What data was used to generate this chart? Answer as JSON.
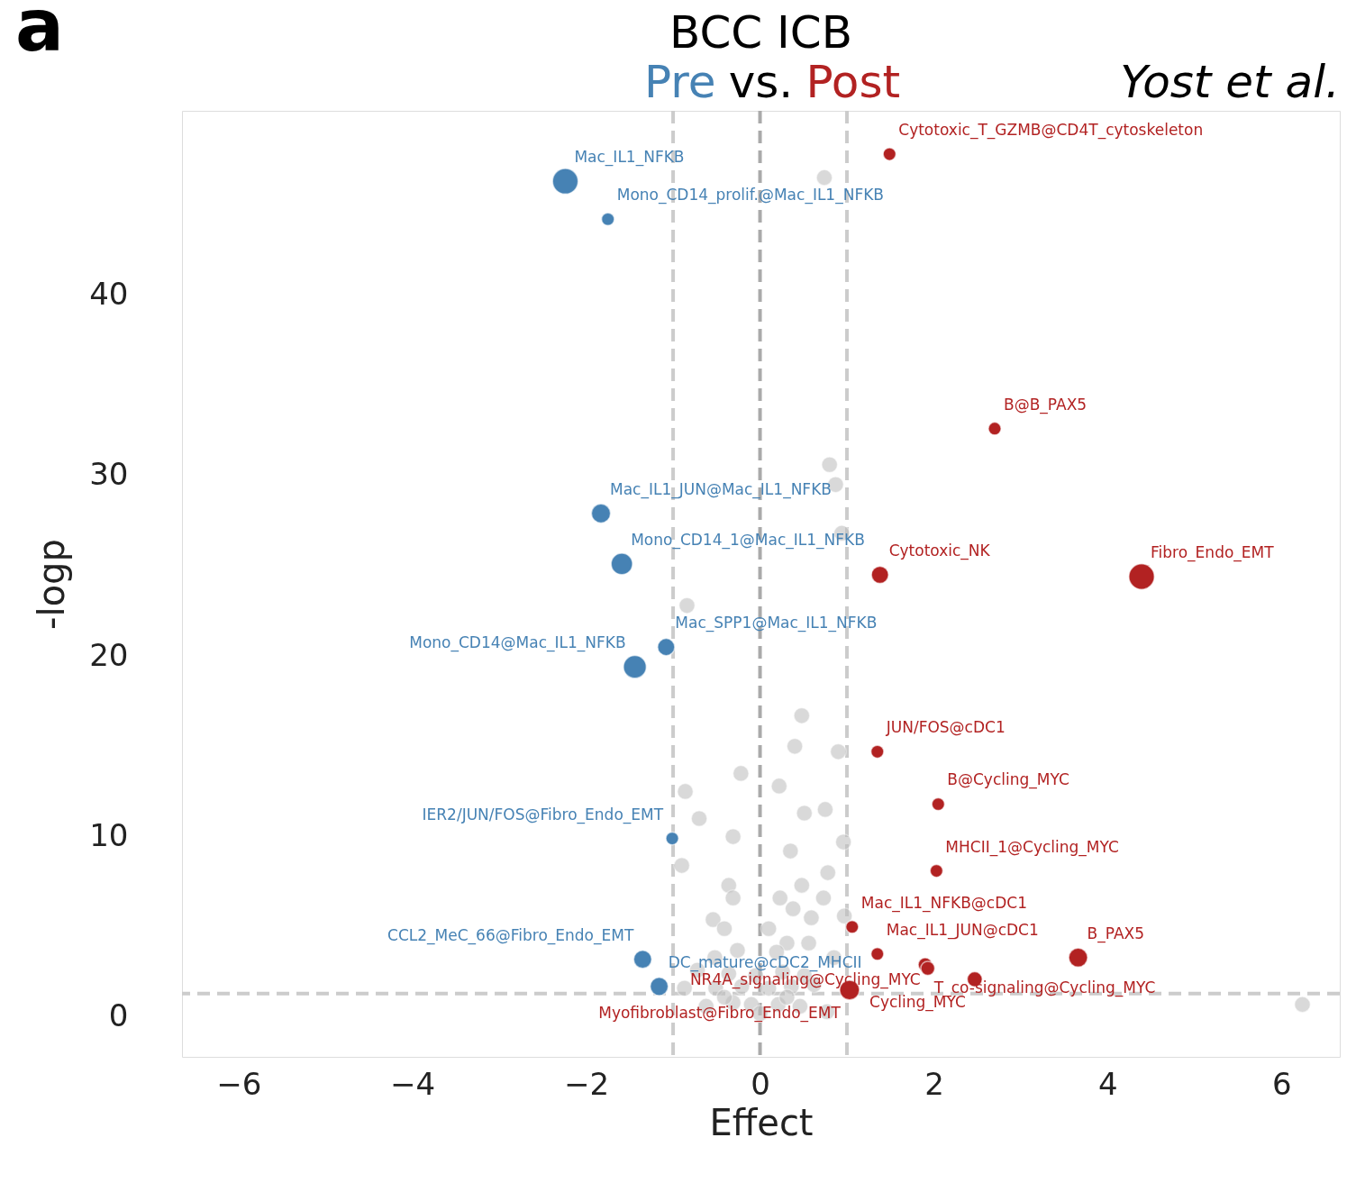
{
  "chart_data": {
    "type": "bubble",
    "title": "BCC ICB",
    "subtitle": "Pre vs. Post",
    "xlabel": "Effect",
    "ylabel": "-logp",
    "annotations": [
      "a",
      "Yost et al.",
      {
        "text": "Mac_IL1_NFKB",
        "x": -2.24,
        "y": 46.3
      },
      {
        "text": "Mono_CD14_prolif.@Mac_IL1_NFKB",
        "x": -1.75,
        "y": 44.2
      },
      {
        "text": "Mac_IL1_JUN@Mac_IL1_NFKB",
        "x": -1.83,
        "y": 27.9
      },
      {
        "text": "Mono_CD14_1@Mac_IL1_NFKB",
        "x": -1.59,
        "y": 25.1
      },
      {
        "text": "Mac_SPP1@Mac_IL1_NFKB",
        "x": -1.08,
        "y": 20.5
      },
      {
        "text": "Mono_CD14@Mac_IL1_NFKB",
        "x": -1.44,
        "y": 19.4
      },
      {
        "text": "IER2/JUN/FOS@Fibro_Endo_EMT",
        "x": -1.01,
        "y": 9.9
      },
      {
        "text": "CCL2_MeC_66@Fibro_Endo_EMT",
        "x": -1.35,
        "y": 3.2
      },
      {
        "text": "DC_mature@cDC2_MHCII",
        "x": -1.16,
        "y": 1.7
      },
      {
        "text": "Cytotoxic_T_GZMB@CD4T_cytoskeleton",
        "x": 1.49,
        "y": 47.8
      },
      {
        "text": "B@B_PAX5",
        "x": 2.7,
        "y": 32.6
      },
      {
        "text": "Cytotoxic_NK",
        "x": 1.38,
        "y": 24.5
      },
      {
        "text": "Fibro_Endo_EMT",
        "x": 4.39,
        "y": 24.4
      },
      {
        "text": "JUN/FOS@cDC1",
        "x": 1.35,
        "y": 14.7
      },
      {
        "text": "B@Cycling_MYC",
        "x": 2.05,
        "y": 11.8
      },
      {
        "text": "MHCII_1@Cycling_MYC",
        "x": 2.03,
        "y": 8.1
      },
      {
        "text": "Mac_IL1_NFKB@cDC1",
        "x": 1.06,
        "y": 5.0
      },
      {
        "text": "Mac_IL1_JUN@cDC1",
        "x": 1.35,
        "y": 3.5
      },
      {
        "text": "T_co-signaling@Cycling_MYC",
        "x": 1.9,
        "y": 2.9
      },
      {
        "text": "NR4A_signaling@Cycling_MYC",
        "x": 1.93,
        "y": 2.7
      },
      {
        "text": "B_PAX5",
        "x": 3.66,
        "y": 3.3
      },
      {
        "text": "Cycling_MYC",
        "x": 2.47,
        "y": 2.1
      },
      {
        "text": "Myofibroblast@Fibro_Endo_EMT",
        "x": 1.03,
        "y": 1.5
      }
    ],
    "xlim": [
      -6.65,
      6.67
    ],
    "ylim": [
      -2.2,
      50.2
    ],
    "xticks": [
      {
        "value": -6,
        "label": "−6"
      },
      {
        "value": -4,
        "label": "−4"
      },
      {
        "value": -2,
        "label": "−2"
      },
      {
        "value": 0,
        "label": "0"
      },
      {
        "value": 2,
        "label": "2"
      },
      {
        "value": 4,
        "label": "4"
      },
      {
        "value": 6,
        "label": "6"
      }
    ],
    "yticks": [
      0,
      10,
      20,
      30,
      40
    ],
    "grid": false,
    "marker": "circle",
    "ref_lines": [
      {
        "axis": "x",
        "value": -1,
        "color": "#cccccc",
        "line_style": "dashed"
      },
      {
        "axis": "x",
        "value": 0,
        "color": "#aaaaaa",
        "line_style": "dashed"
      },
      {
        "axis": "x",
        "value": 1,
        "color": "#cccccc",
        "line_style": "dashed"
      },
      {
        "axis": "y",
        "value": 1.3,
        "color": "#cccccc",
        "line_style": "dashed"
      }
    ],
    "series": [
      {
        "color": "#c0c0c0",
        "x": [
          0.74,
          0.8,
          0.87,
          0.94,
          -0.84,
          0.48,
          0.4,
          0.9,
          -0.22,
          0.22,
          -0.86,
          -0.7,
          0.51,
          0.75,
          -0.31,
          0.96,
          0.35,
          -0.9,
          0.78,
          -0.36,
          0.48,
          -0.31,
          0.23,
          0.73,
          0.38,
          -0.54,
          -0.41,
          0.1,
          0.97,
          0.59,
          0.56,
          0.31,
          -0.26,
          -0.52,
          0.19,
          0.85,
          -0.72,
          -0.36,
          -0.05,
          0.26,
          0.51,
          -0.87,
          -0.51,
          -0.21,
          0.1,
          0.36,
          0.62,
          -0.62,
          -0.31,
          -0.1,
          0.0,
          0.21,
          0.46,
          0.77,
          -0.41,
          0.31,
          6.24
        ],
        "values": [
          46.5,
          30.6,
          29.5,
          26.8,
          22.8,
          16.7,
          15.0,
          14.7,
          13.5,
          12.8,
          12.5,
          11.0,
          11.3,
          11.5,
          10.0,
          9.7,
          9.2,
          8.4,
          8.0,
          7.3,
          7.3,
          6.6,
          6.6,
          6.6,
          6.0,
          5.4,
          4.9,
          4.9,
          5.6,
          5.5,
          4.1,
          4.1,
          3.7,
          3.3,
          3.6,
          3.3,
          2.6,
          2.4,
          2.3,
          2.5,
          2.3,
          1.6,
          1.6,
          1.7,
          1.6,
          1.7,
          1.8,
          0.6,
          0.8,
          0.7,
          0.2,
          0.7,
          0.6,
          0.3,
          1.1,
          1.1,
          0.7
        ],
        "sizes": [
          0.39,
          0.39,
          0.39,
          0.39,
          0.39,
          0.39,
          0.39,
          0.39,
          0.39,
          0.39,
          0.39,
          0.39,
          0.39,
          0.39,
          0.39,
          0.39,
          0.39,
          0.39,
          0.39,
          0.39,
          0.39,
          0.39,
          0.39,
          0.39,
          0.39,
          0.39,
          0.39,
          0.39,
          0.39,
          0.39,
          0.39,
          0.39,
          0.39,
          0.39,
          0.39,
          0.39,
          0.39,
          0.39,
          0.39,
          0.39,
          0.39,
          0.39,
          0.39,
          0.39,
          0.39,
          0.39,
          0.39,
          0.39,
          0.39,
          0.39,
          0.39,
          0.39,
          0.39,
          0.39,
          0.39,
          0.39,
          0.39
        ]
      },
      {
        "color": "#4682b4",
        "x": [
          -2.24,
          -1.75,
          -1.83,
          -1.59,
          -1.08,
          -1.44,
          -1.01,
          -1.35,
          -1.16
        ],
        "values": [
          46.3,
          44.2,
          27.9,
          25.1,
          20.5,
          19.4,
          9.9,
          3.2,
          1.7
        ],
        "sizes": [
          1,
          0.25,
          0.56,
          0.7,
          0.45,
          0.8,
          0.25,
          0.5,
          0.5
        ]
      },
      {
        "color": "#b22222",
        "x": [
          1.49,
          2.7,
          1.38,
          4.39,
          1.35,
          2.05,
          2.03,
          1.06,
          1.35,
          1.9,
          1.93,
          2.47,
          3.66,
          1.03
        ],
        "values": [
          47.8,
          32.6,
          24.5,
          24.4,
          14.7,
          11.8,
          8.1,
          5.0,
          3.5,
          2.9,
          2.7,
          2.1,
          3.3,
          1.5
        ],
        "sizes": [
          0.25,
          0.25,
          0.45,
          1,
          0.25,
          0.25,
          0.25,
          0.25,
          0.25,
          0.3,
          0.3,
          0.35,
          0.55,
          0.6
        ]
      }
    ]
  }
}
